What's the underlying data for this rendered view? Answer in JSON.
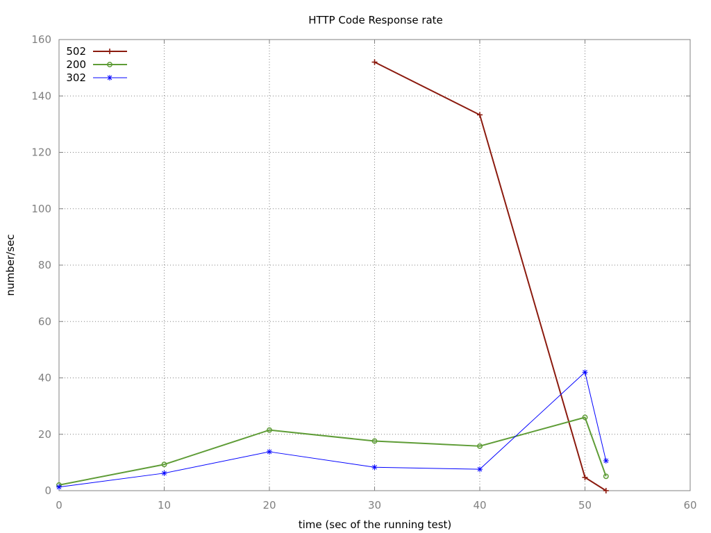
{
  "chart_data": {
    "type": "line",
    "title": "HTTP Code Response rate",
    "xlabel": "time (sec of the running test)",
    "ylabel": "number/sec",
    "xlim": [
      0,
      60
    ],
    "ylim": [
      0,
      160
    ],
    "xticks": [
      0,
      10,
      20,
      30,
      40,
      50,
      60
    ],
    "yticks": [
      0,
      20,
      40,
      60,
      80,
      100,
      120,
      140,
      160
    ],
    "grid": true,
    "legend_position": "top-left",
    "series": [
      {
        "name": "502",
        "color": "#8b1a0e",
        "marker": "plus",
        "line_width": 2,
        "x": [
          30,
          40,
          50,
          52
        ],
        "y": [
          152,
          133.3,
          4.7,
          0
        ]
      },
      {
        "name": "200",
        "color": "#5e9c36",
        "marker": "circle",
        "line_width": 2,
        "x": [
          0,
          10,
          20,
          30,
          40,
          50,
          52
        ],
        "y": [
          2,
          9.3,
          21.5,
          17.6,
          15.8,
          26,
          5.1
        ]
      },
      {
        "name": "302",
        "color": "#0000ff",
        "marker": "star",
        "line_width": 1,
        "x": [
          0,
          10,
          20,
          30,
          40,
          50,
          52
        ],
        "y": [
          1.3,
          6.2,
          13.8,
          8.3,
          7.6,
          42,
          10.6
        ]
      }
    ]
  }
}
